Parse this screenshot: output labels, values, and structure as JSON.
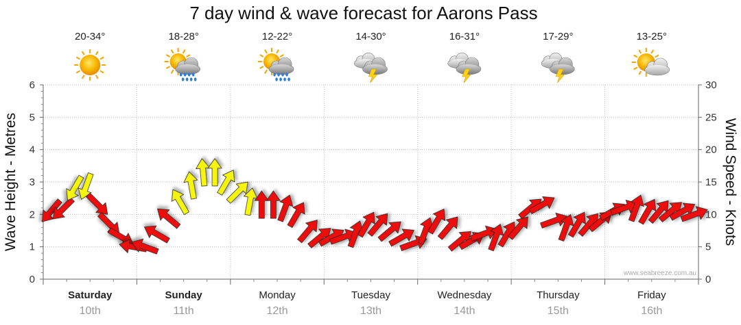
{
  "chart_data": {
    "type": "line",
    "title": "7 day wind & wave forecast for Aarons Pass",
    "ylabel_left": "Wave Height - Metres",
    "ylabel_right": "Wind Speed - Knots",
    "ylim_left": [
      0,
      6
    ],
    "ylim_right": [
      0,
      30
    ],
    "yticks_left": [
      "0",
      "1",
      "2",
      "3",
      "4",
      "5",
      "6"
    ],
    "yticks_right": [
      "0",
      "5",
      "10",
      "15",
      "20",
      "25",
      "30"
    ],
    "grid": true,
    "watermark": "www.seabreeze.com.au",
    "days": [
      {
        "name": "Saturday",
        "date": "10th",
        "temp": "20-34°",
        "icon": "sun-icon",
        "bold": true
      },
      {
        "name": "Sunday",
        "date": "11th",
        "temp": "18-28°",
        "icon": "sun-rain-icon",
        "bold": true
      },
      {
        "name": "Monday",
        "date": "12th",
        "temp": "12-22°",
        "icon": "sun-rain-icon",
        "bold": false
      },
      {
        "name": "Tuesday",
        "date": "13th",
        "temp": "14-30°",
        "icon": "storm-icon",
        "bold": false
      },
      {
        "name": "Wednesday",
        "date": "14th",
        "temp": "16-31°",
        "icon": "storm-icon",
        "bold": false
      },
      {
        "name": "Thursday",
        "date": "15th",
        "temp": "17-29°",
        "icon": "storm-icon",
        "bold": false
      },
      {
        "name": "Friday",
        "date": "16th",
        "temp": "13-25°",
        "icon": "sun-cloud-icon",
        "bold": false
      }
    ],
    "wind_series": {
      "name": "Wind Speed - Knots",
      "x_hours": [
        2,
        5,
        8,
        11,
        14,
        17,
        20,
        23,
        26,
        29,
        32,
        35,
        38,
        41,
        44,
        47,
        50,
        53,
        56,
        59,
        62,
        65,
        68,
        71,
        74,
        77,
        80,
        83,
        86,
        89,
        92,
        95,
        98,
        101,
        104,
        107,
        110,
        113,
        116,
        119,
        122,
        125,
        128,
        131,
        134,
        137,
        140,
        143,
        146,
        149,
        152,
        155,
        158,
        161,
        164,
        167
      ],
      "knots": [
        10.5,
        10.8,
        14,
        14.3,
        11.5,
        8.5,
        6.5,
        5,
        5,
        7,
        9.5,
        12,
        14.5,
        16.5,
        16.5,
        15,
        13.5,
        12,
        11.5,
        11.5,
        11,
        10,
        7.5,
        6.5,
        6.5,
        6.5,
        7,
        8.5,
        8.5,
        7.5,
        6.5,
        5.5,
        7.5,
        9,
        8,
        6,
        6,
        7,
        6.5,
        7,
        8,
        11,
        11.5,
        9,
        8,
        8.5,
        8.5,
        9,
        10.5,
        11,
        11,
        10.5,
        10.5,
        10.5,
        10.5,
        10
      ],
      "direction_deg": [
        40,
        45,
        30,
        20,
        315,
        315,
        300,
        100,
        110,
        120,
        130,
        150,
        170,
        175,
        180,
        210,
        225,
        190,
        180,
        180,
        200,
        210,
        220,
        230,
        240,
        250,
        200,
        210,
        220,
        230,
        240,
        250,
        200,
        210,
        220,
        230,
        240,
        250,
        200,
        210,
        220,
        230,
        240,
        250,
        200,
        210,
        220,
        230,
        240,
        250,
        200,
        210,
        220,
        230,
        240,
        250
      ],
      "colors": {
        "low": "#ee1111",
        "high": "#f5f511"
      },
      "threshold_knots": 12
    }
  }
}
